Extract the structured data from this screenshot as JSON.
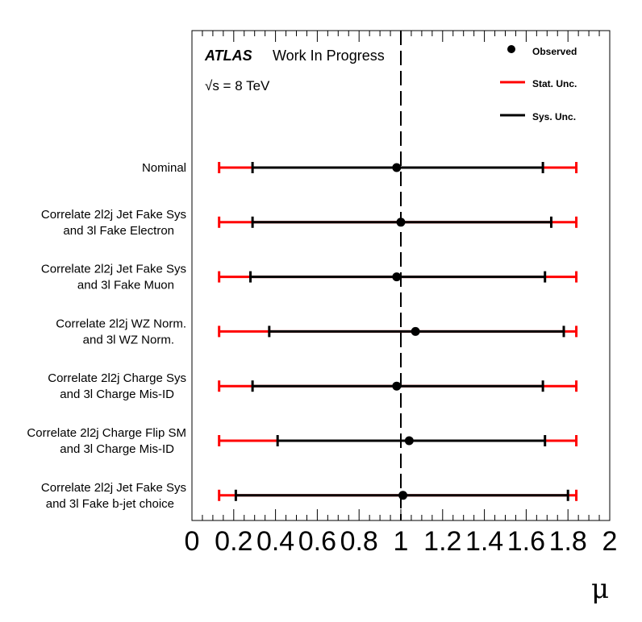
{
  "chart_data": {
    "type": "scatter",
    "orientation": "horizontal",
    "title": "",
    "xlabel": "μ",
    "ylabel": "",
    "xlim": [
      0,
      2
    ],
    "x_ticks": [
      "0",
      "0.2",
      "0.4",
      "0.6",
      "0.8",
      "1",
      "1.2",
      "1.4",
      "1.6",
      "1.8",
      "2"
    ],
    "reference_line": 1,
    "experiment": "ATLAS",
    "status": "Work In Progress",
    "energy": "√s = 8 TeV",
    "legend": {
      "position": "top-right",
      "entries": [
        {
          "label": "Observed",
          "marker": "point",
          "color": "#000000"
        },
        {
          "label": "Stat. Unc.",
          "marker": "line",
          "color": "#ff0000"
        },
        {
          "label": "Sys. Unc.",
          "marker": "line",
          "color": "#000000"
        }
      ]
    },
    "categories": [
      [
        "Nominal"
      ],
      [
        "Correlate 2l2j Jet Fake Sys",
        "and 3l Fake Electron"
      ],
      [
        "Correlate 2l2j Jet Fake Sys",
        "and 3l Fake Muon"
      ],
      [
        "Correlate 2l2j WZ Norm.",
        "and 3l WZ Norm."
      ],
      [
        "Correlate 2l2j Charge Sys",
        "and 3l Charge Mis-ID"
      ],
      [
        "Correlate 2l2j Charge Flip SM",
        "and 3l Charge Mis-ID"
      ],
      [
        "Correlate 2l2j Jet Fake Sys",
        "and 3l Fake b-jet choice"
      ]
    ],
    "series": [
      {
        "name": "Observed",
        "values": [
          0.98,
          1.0,
          0.98,
          1.07,
          0.98,
          1.04,
          1.01
        ]
      },
      {
        "name": "Stat. Unc.",
        "low": [
          0.13,
          0.13,
          0.13,
          0.13,
          0.13,
          0.13,
          0.13
        ],
        "high": [
          1.84,
          1.84,
          1.84,
          1.84,
          1.84,
          1.84,
          1.84
        ]
      },
      {
        "name": "Sys. Unc.",
        "low": [
          0.29,
          0.29,
          0.28,
          0.37,
          0.29,
          0.41,
          0.21
        ],
        "high": [
          1.68,
          1.72,
          1.69,
          1.78,
          1.68,
          1.69,
          1.8
        ]
      }
    ]
  }
}
